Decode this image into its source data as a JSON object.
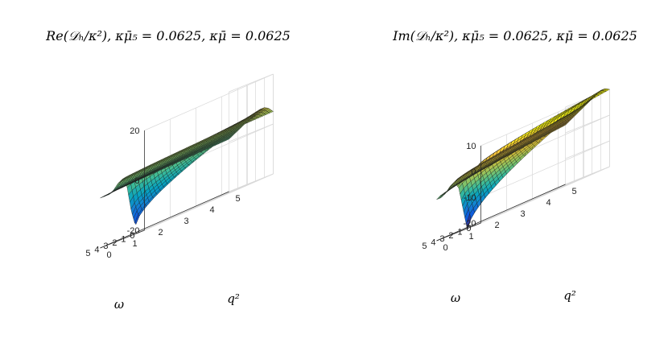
{
  "chart_data": [
    {
      "type": "surface",
      "title": "Re(𝒟ₕ/κ²),  κμ̄₅ = 0.0625,  κμ̄ = 0.0625",
      "xlabel": "ω",
      "ylabel": "q²",
      "zlabel": "",
      "xlim": [
        0,
        5
      ],
      "ylim": [
        0,
        5
      ],
      "zlim": [
        -20,
        20
      ],
      "xticks": [
        "0",
        "1",
        "2",
        "3",
        "4",
        "5"
      ],
      "yticks": [
        "0",
        "1",
        "2",
        "3",
        "4",
        "5"
      ],
      "zticks": [
        "-20",
        "0",
        "20"
      ],
      "ridge_profile": {
        "omega": [
          0,
          0.5,
          1.0,
          1.5,
          2.0,
          2.5,
          3.0,
          3.5,
          4.0,
          4.5,
          5.0
        ],
        "value_at_q2_0": [
          5,
          -4,
          -17,
          -10,
          1,
          4,
          3,
          1,
          0,
          0,
          0
        ],
        "value_at_q2_5": [
          5,
          7,
          8,
          8,
          7,
          6,
          5,
          4,
          3,
          2,
          1
        ]
      },
      "colormap": "parula"
    },
    {
      "type": "surface",
      "title": "Im(𝒟ₕ/κ²),  κμ̄₅ = 0.0625,  κμ̄ = 0.0625",
      "xlabel": "ω",
      "ylabel": "q²",
      "zlabel": "",
      "xlim": [
        0,
        5
      ],
      "ylim": [
        0,
        5
      ],
      "zlim": [
        -20,
        10
      ],
      "xticks": [
        "0",
        "1",
        "2",
        "3",
        "4",
        "5"
      ],
      "yticks": [
        "0",
        "1",
        "2",
        "3",
        "4",
        "5"
      ],
      "zticks": [
        "-20",
        "-10",
        "0",
        "10"
      ],
      "ridge_profile": {
        "omega": [
          0,
          0.5,
          1.0,
          1.5,
          2.0,
          2.5,
          3.0,
          3.5,
          4.0,
          4.5,
          5.0
        ],
        "value_at_q2_0": [
          0,
          3,
          -5,
          -21,
          -12,
          -3,
          0,
          -1,
          -3,
          -4,
          -4
        ],
        "value_at_q2_5": [
          10,
          11,
          11,
          10,
          9,
          8,
          7,
          6,
          5,
          4,
          3
        ]
      },
      "colormap": "parula"
    }
  ]
}
